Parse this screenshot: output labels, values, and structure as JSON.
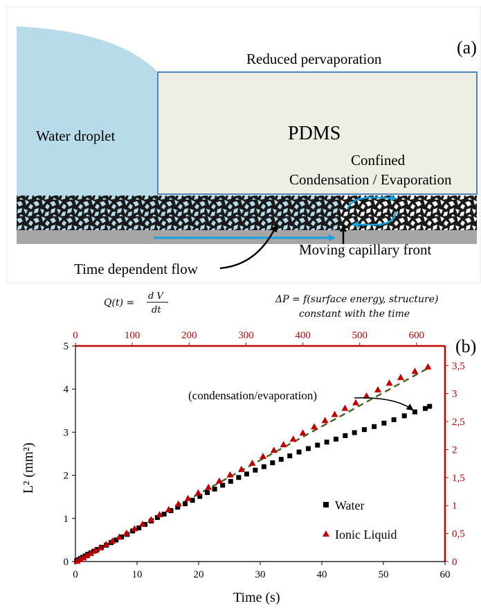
{
  "panel_a": {
    "label": "(a)",
    "droplet_label": "Water droplet",
    "pdms_label": "PDMS",
    "top_label": "Reduced pervaporation",
    "confined_line1": "Confined",
    "confined_line2": "Condensation / Evaporation",
    "flow_label": "Time dependent flow",
    "front_label": "Moving capillary front",
    "eq_left": "Q(t) = ",
    "eq_left_num": "d V",
    "eq_left_den": "dt",
    "eq_right_line1": "ΔP = f(surface energy, structure)",
    "eq_right_line2": "constant with the time",
    "colors": {
      "droplet": "#b7dbe8",
      "pdms": "#eeeee4",
      "arrow": "#1ba1e2",
      "substrate": "#a6a6a6"
    }
  },
  "panel_b": {
    "label": "(b)",
    "annotation": "(condensation/evaporation)"
  },
  "chart_data": {
    "type": "scatter",
    "xlabel": "Time (s)",
    "ylabel": "L² (mm²)",
    "xlim": [
      0,
      60
    ],
    "ylim": [
      0,
      5
    ],
    "x_ticks": [
      "0",
      "10",
      "20",
      "30",
      "40",
      "50",
      "60"
    ],
    "y_ticks": [
      "0",
      "1",
      "2",
      "3",
      "4",
      "5"
    ],
    "x2lim": [
      0,
      650
    ],
    "y2lim": [
      0,
      3.85
    ],
    "x2_ticks": [
      "0",
      "100",
      "200",
      "300",
      "400",
      "500",
      "600"
    ],
    "y2_ticks": [
      "0",
      "0,5",
      "1",
      "1,5",
      "2",
      "2,5",
      "3",
      "3,5"
    ],
    "secondary_axis_color": "#c00000",
    "legend_position": "bottom-right",
    "grid": false,
    "series": [
      {
        "name": "Water",
        "axis": "primary",
        "color": "#000000",
        "marker": "square",
        "points": [
          [
            0.2,
            0.02
          ],
          [
            0.5,
            0.04
          ],
          [
            0.8,
            0.07
          ],
          [
            1.2,
            0.1
          ],
          [
            1.6,
            0.13
          ],
          [
            2.0,
            0.17
          ],
          [
            2.5,
            0.2
          ],
          [
            3.0,
            0.24
          ],
          [
            3.5,
            0.28
          ],
          [
            4.2,
            0.33
          ],
          [
            5.0,
            0.38
          ],
          [
            5.8,
            0.44
          ],
          [
            6.6,
            0.5
          ],
          [
            7.5,
            0.57
          ],
          [
            8.4,
            0.63
          ],
          [
            9.3,
            0.71
          ],
          [
            10.3,
            0.78
          ],
          [
            11.3,
            0.86
          ],
          [
            12.3,
            0.94
          ],
          [
            13.3,
            1.02
          ],
          [
            14.4,
            1.1
          ],
          [
            15.5,
            1.18
          ],
          [
            16.6,
            1.26
          ],
          [
            17.8,
            1.34
          ],
          [
            19.0,
            1.42
          ],
          [
            20.2,
            1.51
          ],
          [
            21.4,
            1.6
          ],
          [
            22.6,
            1.68
          ],
          [
            23.9,
            1.77
          ],
          [
            25.2,
            1.86
          ],
          [
            26.5,
            1.95
          ],
          [
            27.8,
            2.03
          ],
          [
            29.2,
            2.12
          ],
          [
            30.6,
            2.2
          ],
          [
            32.0,
            2.29
          ],
          [
            33.4,
            2.37
          ],
          [
            34.8,
            2.45
          ],
          [
            36.3,
            2.54
          ],
          [
            37.8,
            2.62
          ],
          [
            39.3,
            2.7
          ],
          [
            40.8,
            2.77
          ],
          [
            42.3,
            2.84
          ],
          [
            43.8,
            2.92
          ],
          [
            45.3,
            2.99
          ],
          [
            46.9,
            3.06
          ],
          [
            48.5,
            3.13
          ],
          [
            50.1,
            3.21
          ],
          [
            51.7,
            3.29
          ],
          [
            53.4,
            3.38
          ],
          [
            55.1,
            3.47
          ],
          [
            56.8,
            3.55
          ],
          [
            57.5,
            3.6
          ]
        ]
      },
      {
        "name": "Ionic Liquid",
        "axis": "secondary",
        "color": "#c00000",
        "marker": "triangle",
        "points": [
          [
            3,
            0.01
          ],
          [
            8,
            0.04
          ],
          [
            14,
            0.07
          ],
          [
            20,
            0.11
          ],
          [
            27,
            0.15
          ],
          [
            35,
            0.2
          ],
          [
            44,
            0.25
          ],
          [
            54,
            0.31
          ],
          [
            65,
            0.37
          ],
          [
            77,
            0.44
          ],
          [
            90,
            0.51
          ],
          [
            104,
            0.59
          ],
          [
            118,
            0.67
          ],
          [
            133,
            0.75
          ],
          [
            148,
            0.84
          ],
          [
            164,
            0.93
          ],
          [
            181,
            1.03
          ],
          [
            198,
            1.13
          ],
          [
            216,
            1.23
          ],
          [
            234,
            1.33
          ],
          [
            253,
            1.44
          ],
          [
            272,
            1.55
          ],
          [
            292,
            1.65
          ],
          [
            311,
            1.76
          ],
          [
            330,
            1.88
          ],
          [
            349,
            1.99
          ],
          [
            366,
            2.09
          ],
          [
            383,
            2.19
          ],
          [
            400,
            2.3
          ],
          [
            420,
            2.41
          ],
          [
            439,
            2.52
          ],
          [
            456,
            2.63
          ],
          [
            474,
            2.74
          ],
          [
            493,
            2.84
          ],
          [
            512,
            2.96
          ],
          [
            532,
            3.07
          ],
          [
            552,
            3.19
          ],
          [
            572,
            3.29
          ],
          [
            597,
            3.4
          ],
          [
            620,
            3.48
          ]
        ]
      }
    ],
    "fit_line": {
      "axis": "secondary",
      "style": "dashed",
      "color": "#4f6228",
      "points": [
        [
          0,
          0
        ],
        [
          625,
          3.48
        ]
      ]
    }
  }
}
